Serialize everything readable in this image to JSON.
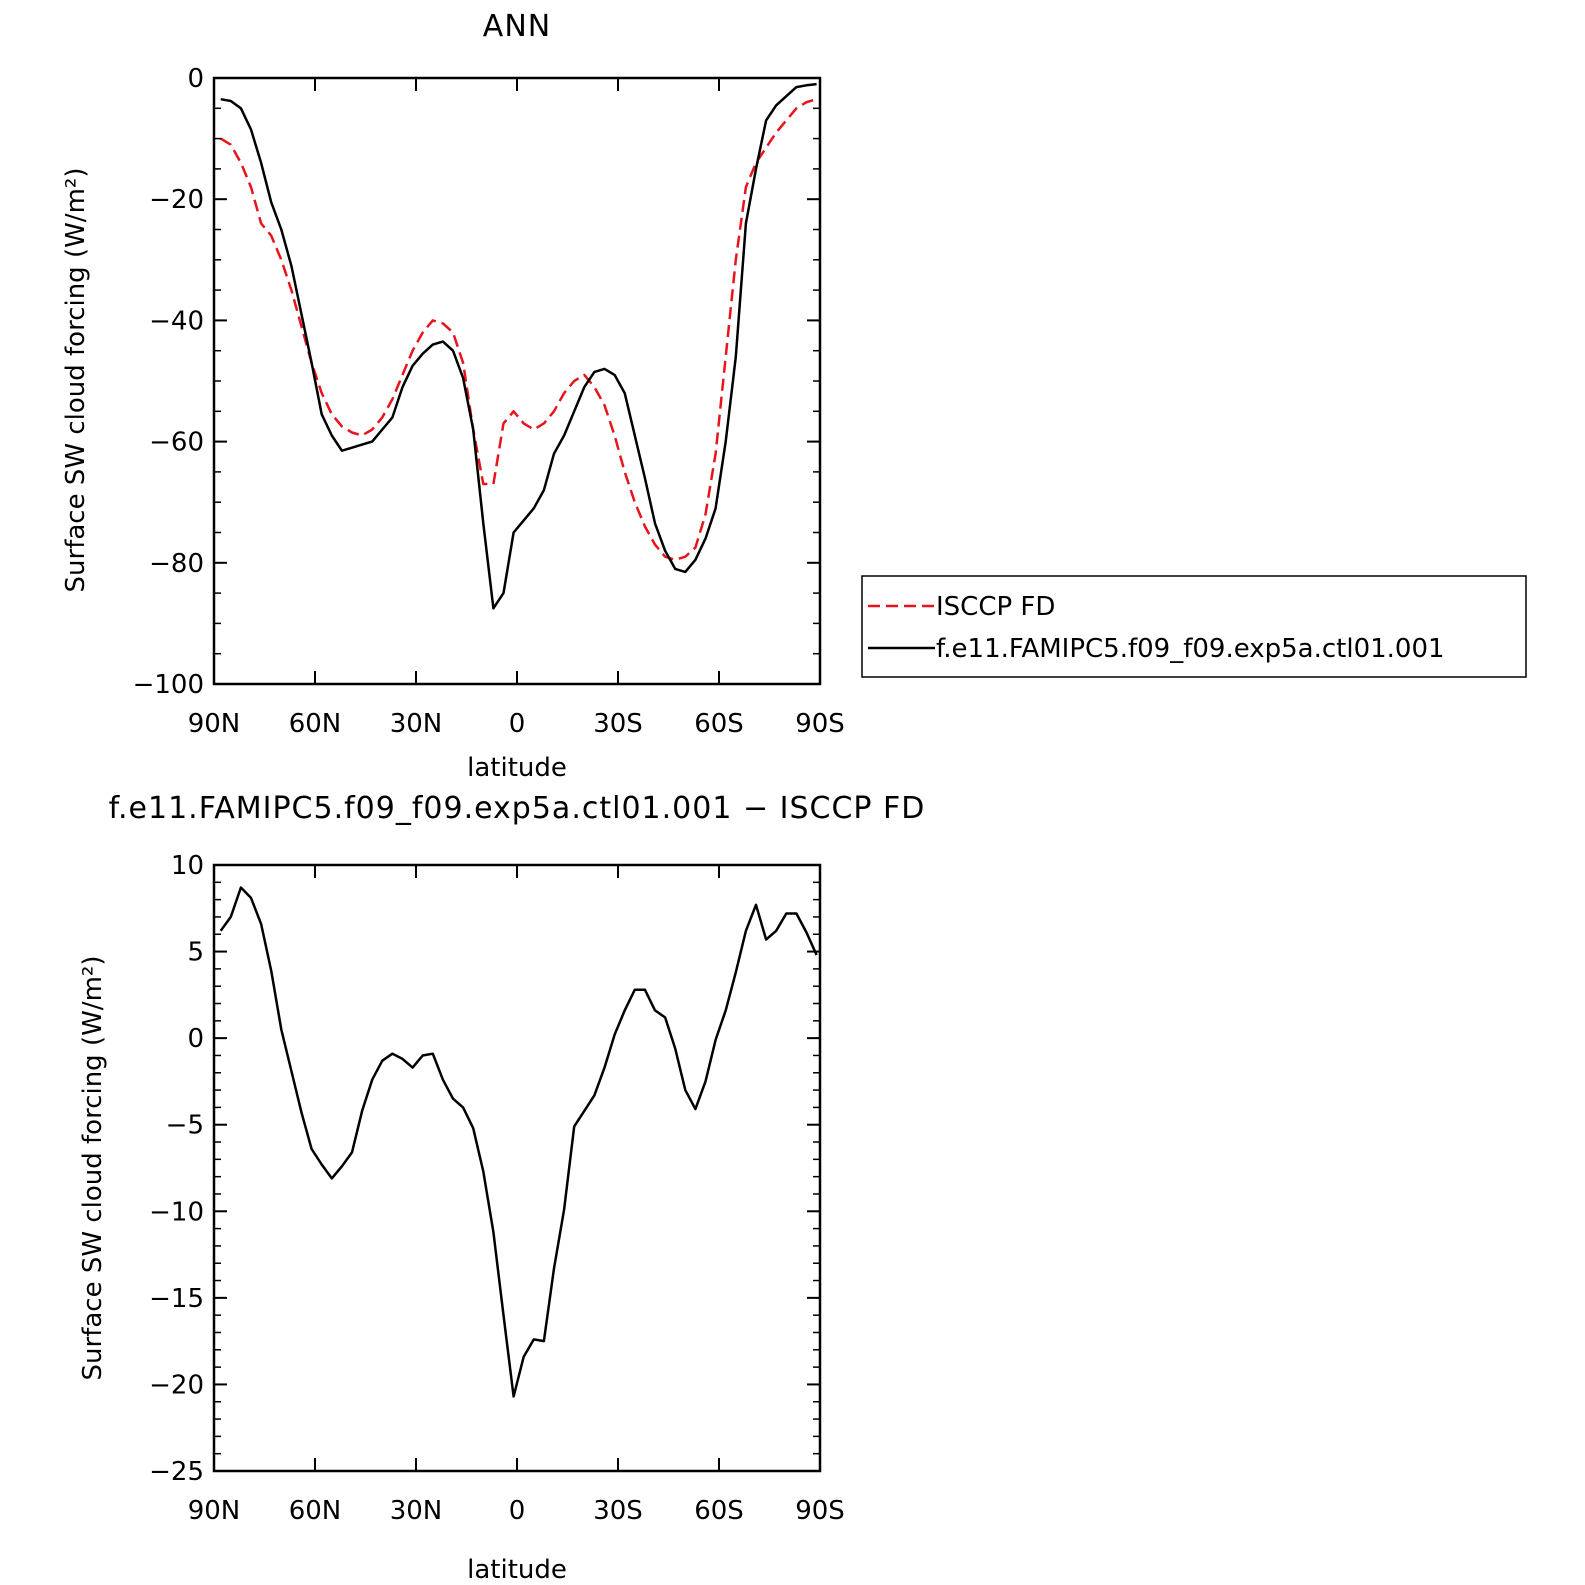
{
  "chart_data": [
    {
      "type": "line",
      "title": "ANN",
      "xlabel": "latitude",
      "ylabel": "Surface SW cloud forcing (W/m²)",
      "xlim": [
        90,
        -90
      ],
      "ylim": [
        -100,
        0
      ],
      "x_ticks": [
        "90N",
        "60N",
        "30N",
        "0",
        "30S",
        "60S",
        "90S"
      ],
      "y_ticks": [
        "0",
        "−20",
        "−40",
        "−60",
        "−80",
        "−100"
      ],
      "grid": false,
      "legend_position": "right",
      "series": [
        {
          "name": "ISCCP FD",
          "color": "#e8141d",
          "dash": "dashed",
          "x": [
            88,
            85,
            82,
            79,
            76,
            73,
            70,
            67,
            64,
            61,
            58,
            55,
            52,
            49,
            46,
            43,
            40,
            37,
            34,
            31,
            28,
            25,
            22,
            19,
            16,
            13,
            10,
            7,
            4,
            1,
            -2,
            -5,
            -8,
            -11,
            -14,
            -17,
            -20,
            -23,
            -26,
            -29,
            -32,
            -35,
            -38,
            -41,
            -44,
            -47,
            -50,
            -53,
            -56,
            -59,
            -62,
            -65,
            -68,
            -71,
            -74,
            -77,
            -80,
            -83,
            -86,
            -89
          ],
          "y": [
            -10,
            -11,
            -14,
            -18,
            -24,
            -26,
            -30,
            -35,
            -41,
            -47,
            -52,
            -55.5,
            -57.5,
            -58.5,
            -59,
            -58,
            -56,
            -53,
            -49,
            -45,
            -42,
            -40,
            -40.5,
            -42,
            -47,
            -58,
            -67,
            -67,
            -57,
            -55,
            -57,
            -58,
            -57,
            -55,
            -52,
            -50,
            -49,
            -51,
            -54,
            -59,
            -65,
            -70,
            -74,
            -77,
            -79,
            -79.5,
            -79,
            -77.5,
            -72,
            -62,
            -46,
            -30,
            -18,
            -14,
            -11.5,
            -9,
            -7,
            -5,
            -4,
            -3.5
          ]
        },
        {
          "name": "f.e11.FAMIPC5.f09_f09.exp5a.ctl01.001",
          "color": "#000000",
          "dash": "solid",
          "x": [
            88,
            85,
            82,
            79,
            76,
            73,
            70,
            67,
            64,
            61,
            58,
            55,
            52,
            49,
            46,
            43,
            40,
            37,
            34,
            31,
            28,
            25,
            22,
            19,
            16,
            13,
            10,
            7,
            4,
            1,
            -2,
            -5,
            -8,
            -11,
            -14,
            -17,
            -20,
            -23,
            -26,
            -29,
            -32,
            -35,
            -38,
            -41,
            -44,
            -47,
            -50,
            -53,
            -56,
            -59,
            -62,
            -65,
            -68,
            -71,
            -74,
            -77,
            -80,
            -83,
            -86,
            -89
          ],
          "y": [
            -3.5,
            -3.8,
            -5,
            -8.5,
            -14,
            -20.5,
            -25,
            -31,
            -39,
            -47,
            -55.5,
            -59,
            -61.5,
            -61,
            -60.5,
            -60,
            -58,
            -56,
            -51,
            -47.5,
            -45.5,
            -44,
            -43.5,
            -45,
            -49.5,
            -58,
            -73.5,
            -87.5,
            -85,
            -75,
            -73,
            -71,
            -68,
            -62,
            -59,
            -55,
            -51,
            -48.5,
            -48,
            -49,
            -52,
            -59,
            -66,
            -73.5,
            -78,
            -81,
            -81.5,
            -79.5,
            -76,
            -71,
            -60,
            -46,
            -24,
            -15,
            -7,
            -4.5,
            -3,
            -1.5,
            -1.2,
            -1
          ]
        }
      ]
    },
    {
      "type": "line",
      "title": "f.e11.FAMIPC5.f09_f09.exp5a.ctl01.001 − ISCCP FD",
      "xlabel": "latitude",
      "ylabel": "Surface SW cloud forcing (W/m²)",
      "xlim": [
        90,
        -90
      ],
      "ylim": [
        -25,
        10
      ],
      "x_ticks": [
        "90N",
        "60N",
        "30N",
        "0",
        "30S",
        "60S",
        "90S"
      ],
      "y_ticks": [
        "10",
        "5",
        "0",
        "−5",
        "−10",
        "−15",
        "−20",
        "−25"
      ],
      "grid": false,
      "series": [
        {
          "color": "#000000",
          "dash": "solid",
          "x": [
            88,
            85,
            82,
            79,
            76,
            73,
            70,
            67,
            64,
            61,
            58,
            55,
            52,
            49,
            46,
            43,
            40,
            37,
            34,
            31,
            28,
            25,
            22,
            19,
            16,
            13,
            10,
            7,
            4,
            1,
            -2,
            -5,
            -8,
            -11,
            -14,
            -17,
            -20,
            -23,
            -26,
            -29,
            -32,
            -35,
            -38,
            -41,
            -44,
            -47,
            -50,
            -53,
            -56,
            -59,
            -62,
            -65,
            -68,
            -71,
            -74,
            -77,
            -80,
            -83,
            -86,
            -89
          ],
          "y": [
            6.2,
            7,
            8.7,
            8.1,
            6.6,
            3.9,
            0.5,
            -1.9,
            -4.3,
            -6.4,
            -7.3,
            -8.1,
            -7.4,
            -6.6,
            -4.2,
            -2.4,
            -1.3,
            -0.9,
            -1.2,
            -1.7,
            -1,
            -0.9,
            -2.4,
            -3.5,
            -4,
            -5.2,
            -7.7,
            -11.2,
            -16,
            -20.7,
            -18.4,
            -17.4,
            -17.5,
            -13.3,
            -9.9,
            -5.1,
            -4.2,
            -3.3,
            -1.7,
            0.2,
            1.6,
            2.8,
            2.8,
            1.6,
            1.2,
            -0.6,
            -3,
            -4.1,
            -2.5,
            -0.1,
            1.6,
            3.8,
            6.2,
            7.7,
            5.7,
            6.2,
            7.2,
            7.2,
            6.1,
            4.8
          ]
        }
      ]
    }
  ]
}
